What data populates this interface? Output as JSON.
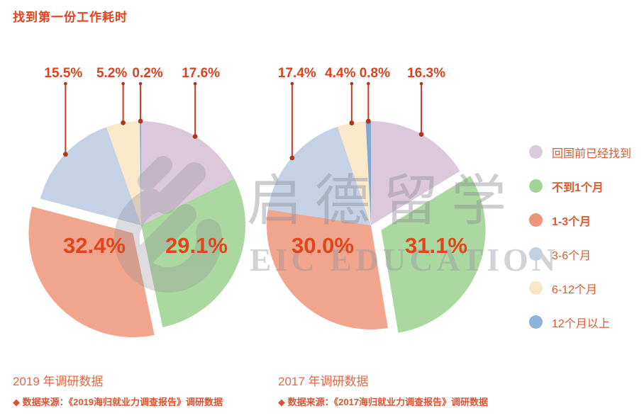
{
  "title": "找到第一份工作耗时",
  "watermark": {
    "cn": "启德留学",
    "en": "EIC EDUCATION"
  },
  "legend": {
    "items": [
      {
        "label": "回国前已经找到",
        "color": "#D8CCDB",
        "bold": false
      },
      {
        "label": "不到1个月",
        "color": "#A4D398",
        "bold": true
      },
      {
        "label": "1-3个月",
        "color": "#EF9379",
        "bold": true
      },
      {
        "label": "3-6个月",
        "color": "#C3D0E2",
        "bold": false
      },
      {
        "label": "6-12个月",
        "color": "#F9E6C4",
        "bold": false
      },
      {
        "label": "12个月以上",
        "color": "#8FB2D8",
        "bold": false
      }
    ]
  },
  "chart_data": [
    {
      "type": "pie",
      "title": "2019 年调研数据",
      "source": "◆ 数据来源：《2019海归就业力调查报告》调研数据",
      "legend_position": "right",
      "categories": [
        "回国前已经找到",
        "不到1个月",
        "1-3个月",
        "3-6个月",
        "6-12个月",
        "12个月以上"
      ],
      "values": [
        17.6,
        29.1,
        32.4,
        15.5,
        5.2,
        0.2
      ],
      "labels_display": [
        "17.6%",
        "29.1%",
        "32.4%",
        "15.5%",
        "5.2%",
        "0.2%"
      ],
      "colors": [
        "#DBC9DB",
        "#ABD8A0",
        "#F2A58D",
        "#C5D1E4",
        "#F9E8CA",
        "#7EA7D1"
      ],
      "exploded_index": 2,
      "label_mode": [
        "callout",
        "inside",
        "inside",
        "callout",
        "callout",
        "callout"
      ],
      "inside_positions": {
        "1": [
          277,
          357
        ],
        "2": [
          133,
          357
        ]
      },
      "callout_label_dx": {
        "0": 8,
        "3": -3,
        "4": -16,
        "5": 10
      }
    },
    {
      "type": "pie",
      "title": "2017 年调研数据",
      "source": "◆ 数据来源：《2017海归就业力调查报告》调研数据",
      "legend_position": "right",
      "categories": [
        "回国前已经找到",
        "不到1个月",
        "1-3个月",
        "3-6个月",
        "6-12个月",
        "12个月以上"
      ],
      "values": [
        16.3,
        31.1,
        30.0,
        17.4,
        4.4,
        0.8
      ],
      "labels_display": [
        "16.3%",
        "31.1%",
        "30.0%",
        "17.4%",
        "4.4%",
        "0.8%"
      ],
      "colors": [
        "#DBC9DB",
        "#ABD8A0",
        "#F2A58D",
        "#C5D1E4",
        "#F9E8CA",
        "#7EA7D1"
      ],
      "exploded_index": 1,
      "label_mode": [
        "callout",
        "inside",
        "inside",
        "callout",
        "callout",
        "callout"
      ],
      "inside_positions": {
        "1": [
          615,
          357
        ],
        "2": [
          455,
          357
        ]
      },
      "callout_label_dx": {
        "0": 7,
        "3": 7,
        "4": -16,
        "5": 9
      }
    }
  ]
}
